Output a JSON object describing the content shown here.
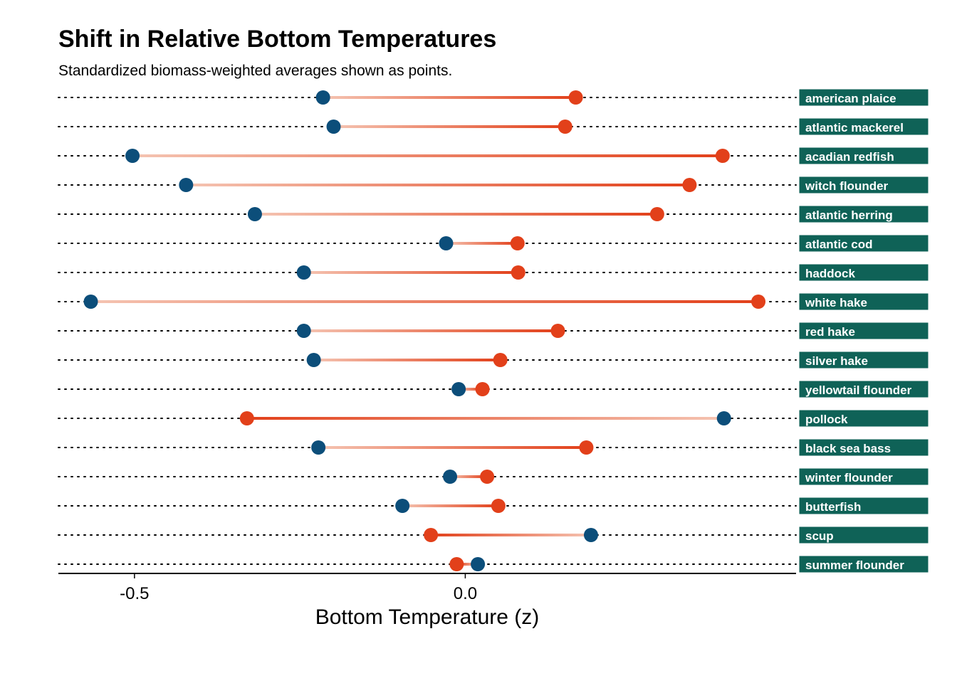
{
  "chart_data": {
    "type": "dumbbell",
    "title": "Shift in Relative Bottom Temperatures",
    "subtitle": "Standardized biomass-weighted averages shown as points.",
    "xlabel": "Bottom Temperature (z)",
    "ylabel": "",
    "xlim": [
      -0.615,
      0.5
    ],
    "xticks": [
      -0.5,
      0.0
    ],
    "xtick_labels": [
      "-0.5",
      "0.0"
    ],
    "grid": "dotted horizontal guide per row",
    "legend": "none",
    "colors": {
      "blue": "#0c4e7a",
      "red": "#e2401a",
      "segment_light": "#f5c4b2",
      "segment_dark": "#e2401a",
      "label_bg": "#0f6257",
      "label_text": "#ffffff"
    },
    "categories": [
      "american plaice",
      "atlantic mackerel",
      "acadian redfish",
      "witch flounder",
      "atlantic herring",
      "atlantic cod",
      "haddock",
      "white hake",
      "red hake",
      "silver hake",
      "yellowtail flounder",
      "pollock",
      "black sea bass",
      "winter flounder",
      "butterfish",
      "scup",
      "summer flounder"
    ],
    "series": [
      {
        "color": "#0c4e7a",
        "values": [
          -0.215,
          -0.199,
          -0.503,
          -0.422,
          -0.318,
          -0.029,
          -0.244,
          -0.566,
          -0.244,
          -0.229,
          -0.01,
          0.391,
          -0.222,
          -0.023,
          -0.095,
          0.19,
          0.019
        ]
      },
      {
        "color": "#e2401a",
        "values": [
          0.167,
          0.151,
          0.389,
          0.339,
          0.29,
          0.079,
          0.08,
          0.443,
          0.14,
          0.053,
          0.026,
          -0.33,
          0.183,
          0.033,
          0.05,
          -0.052,
          -0.013
        ]
      }
    ]
  }
}
